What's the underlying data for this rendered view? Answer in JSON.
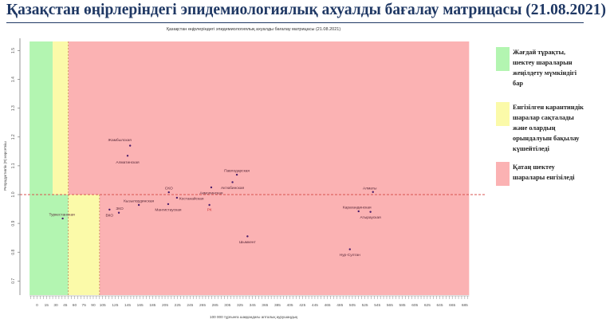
{
  "header": {
    "title": "Қазақстан өңірлеріндегі эпидемиологиялық ахуалды бағалау матрицасы  (21.08.2021)"
  },
  "colors": {
    "green": "#b3f5b1",
    "yellow": "#fbfaa9",
    "red": "#fbb2b3",
    "title": "#1f3864",
    "point": "#4a1d6a",
    "threshold_line": "#d9534f"
  },
  "legend": [
    {
      "label": "Жағдай тұрақты, шектеу шараларын жеңілдету мүмкіндігі бар",
      "color": "#b3f5b1"
    },
    {
      "label": "Енгізілген карантиндік шаралар сақталады және олардың орындалуын бақылау күшейтіледі",
      "color": "#fbfaa9"
    },
    {
      "label": "Қатаң шектеу шаралары енгізіледі",
      "color": "#fbb2b3"
    }
  ],
  "chart_data": {
    "type": "scatter",
    "title": "Қазақстан өңірлеріндегі эпидемиологиялық ахуалды бағалау матрицасы  (21.08.2021)",
    "xlabel": "100 000 тұрғынға шаққандағы апталық аурушаңдық",
    "ylabel": "Репродуктивтік (R) көрсеткіш",
    "xlim": [
      -12,
      692
    ],
    "ylim": [
      0.66,
      1.53
    ],
    "x_ticks": [
      0,
      15,
      30,
      45,
      60,
      75,
      90,
      105,
      125,
      145,
      165,
      185,
      205,
      225,
      245,
      265,
      285,
      305,
      325,
      345,
      365,
      385,
      405,
      425,
      445,
      465,
      485,
      505,
      525,
      545,
      565,
      585,
      605,
      625,
      645,
      665,
      685
    ],
    "y_ticks": [
      "0.7",
      "0.8",
      "0.9",
      "1.0",
      "1.1",
      "1.2",
      "1.3",
      "1.4",
      "1.5"
    ],
    "threshold_y": 1.0,
    "zones": [
      {
        "zone": "green",
        "x_range_above_threshold": [
          -12,
          25
        ],
        "x_range_below_threshold": [
          -12,
          50
        ]
      },
      {
        "zone": "yellow",
        "x_range_above_threshold": [
          25,
          50
        ],
        "x_range_below_threshold": [
          50,
          100
        ]
      },
      {
        "zone": "red",
        "x_range_above_threshold": [
          50,
          692
        ],
        "x_range_below_threshold": [
          100,
          692
        ]
      }
    ],
    "points": [
      {
        "label": "Жамбылская",
        "x": 149,
        "y": 1.17
      },
      {
        "label": "Алматинская",
        "x": 145,
        "y": 1.135
      },
      {
        "label": "Туркестанская",
        "x": 41,
        "y": 0.917
      },
      {
        "label": "ВКО",
        "x": 116,
        "y": 0.948
      },
      {
        "label": "ЗКО",
        "x": 131,
        "y": 0.937
      },
      {
        "label": "Кызылординская",
        "x": 163,
        "y": 0.964
      },
      {
        "label": "СКО",
        "x": 211,
        "y": 1.008
      },
      {
        "label": "Костанайская",
        "x": 224,
        "y": 0.989
      },
      {
        "label": "Мангистауская",
        "x": 210,
        "y": 0.967
      },
      {
        "label": "Акмолинская",
        "x": 279,
        "y": 1.025
      },
      {
        "label": "Актюбинская",
        "x": 313,
        "y": 1.043
      },
      {
        "label": "Павлодарская",
        "x": 320,
        "y": 1.069
      },
      {
        "label": "РК",
        "x": 276,
        "y": 0.964
      },
      {
        "label": "Шымкент",
        "x": 337,
        "y": 0.855
      },
      {
        "label": "Алматы",
        "x": 538,
        "y": 1.009
      },
      {
        "label": "Карагандинская",
        "x": 515,
        "y": 0.942
      },
      {
        "label": "Атырауская",
        "x": 534,
        "y": 0.94
      },
      {
        "label": "Нур-Султан",
        "x": 501,
        "y": 0.81
      }
    ]
  }
}
